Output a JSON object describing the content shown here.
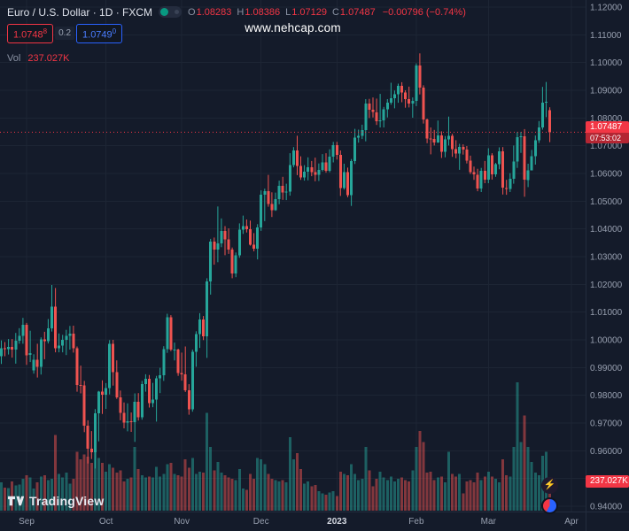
{
  "header": {
    "title": "Euro / U.S. Dollar · 1D · FXCM",
    "ohlc": {
      "open_label": "O",
      "open": "1.08283",
      "high_label": "H",
      "high": "1.08386",
      "low_label": "L",
      "low": "1.07129",
      "close_label": "C",
      "close": "1.07487",
      "change": "−0.00796 (−0.74%)"
    },
    "trade": {
      "sell": "1.0748",
      "sell_sup": "8",
      "spread": "0.2",
      "buy": "1.0749",
      "buy_sup": "0"
    },
    "volume_row": {
      "label": "Vol",
      "value": "237.027K"
    }
  },
  "watermark": "www.nehcap.com",
  "price_axis": {
    "ticks": [
      "1.12000",
      "1.11000",
      "1.10000",
      "1.09000",
      "1.08000",
      "1.07000",
      "1.06000",
      "1.05000",
      "1.04000",
      "1.03000",
      "1.02000",
      "1.01000",
      "1.00000",
      "0.99000",
      "0.98000",
      "0.97000",
      "0.96000",
      "0.95000",
      "0.94000"
    ],
    "last_price_label": "1.07487",
    "countdown": "07:53:02",
    "volume_tag": "237.027K"
  },
  "footer": {
    "brand": "TradingView"
  },
  "icons": {
    "bolt": "⚡"
  },
  "colors": {
    "background": "#141b2a",
    "grid": "#1d2534",
    "axis_text": "#98a0b0",
    "axis_border": "#232c3d",
    "up": "#26a69a",
    "down": "#ef5350",
    "accent_red": "#f23645",
    "accent_blue": "#2962ff",
    "up_volume": "rgba(38,166,154,0.5)",
    "down_volume": "rgba(239,83,80,0.5)"
  },
  "chart_data": {
    "type": "candlestick",
    "symbol": "EUR/USD",
    "interval": "1D",
    "exchange": "FXCM",
    "title": "Euro / U.S. Dollar",
    "ylim": [
      0.94,
      1.12
    ],
    "grid_step": 0.01,
    "last_close": 1.07487,
    "last_change": -0.00796,
    "last_change_pct": -0.74,
    "volume_unit": "K",
    "columns": [
      "open",
      "high",
      "low",
      "close",
      "volume_k"
    ],
    "time_ticks": [
      {
        "label": "Sep",
        "index": 8
      },
      {
        "label": "Oct",
        "index": 30
      },
      {
        "label": "Nov",
        "index": 51
      },
      {
        "label": "Dec",
        "index": 73
      },
      {
        "label": "2023",
        "index": 94,
        "major": true
      },
      {
        "label": "Feb",
        "index": 116
      },
      {
        "label": "Mar",
        "index": 136
      },
      {
        "label": "Apr",
        "index": 159
      }
    ],
    "candles": [
      [
        1.0039,
        1.0045,
        0.9926,
        0.9941,
        210
      ],
      [
        0.9941,
        0.9998,
        0.9913,
        0.997,
        230
      ],
      [
        0.997,
        0.9992,
        0.9941,
        0.9967,
        190
      ],
      [
        0.9967,
        1.0003,
        0.9947,
        0.9975,
        185
      ],
      [
        0.9975,
        1.0003,
        0.9936,
        0.9964,
        240
      ],
      [
        0.9964,
        1.0025,
        0.9914,
        0.9997,
        205
      ],
      [
        0.9997,
        1.0042,
        0.9986,
        1.0014,
        215
      ],
      [
        1.0014,
        1.0079,
        0.9986,
        1.0054,
        260
      ],
      [
        1.0054,
        1.0061,
        0.991,
        0.9945,
        290
      ],
      [
        0.9945,
        1.0033,
        0.992,
        0.9952,
        270
      ],
      [
        0.989,
        0.9948,
        0.9878,
        0.9928,
        180
      ],
      [
        0.9928,
        0.9986,
        0.9864,
        0.9903,
        230
      ],
      [
        0.9903,
        1.0009,
        0.9875,
        1.0002,
        280
      ],
      [
        1.0002,
        1.0029,
        0.993,
        0.9995,
        290
      ],
      [
        0.9995,
        1.0075,
        0.9987,
        1.0041,
        250
      ],
      [
        1.0041,
        1.0198,
        1.003,
        1.012,
        260
      ],
      [
        1.012,
        1.0187,
        0.9955,
        0.997,
        620
      ],
      [
        0.997,
        1.0023,
        0.9955,
        0.9979,
        300
      ],
      [
        0.9979,
        1.0018,
        0.9955,
        1.0,
        270
      ],
      [
        1.0,
        1.0036,
        0.9945,
        1.0015,
        310
      ],
      [
        1.0015,
        1.005,
        0.9965,
        1.0023,
        220
      ],
      [
        1.0023,
        1.0051,
        0.9954,
        0.997,
        260
      ],
      [
        0.997,
        0.9976,
        0.9813,
        0.9838,
        480
      ],
      [
        0.9838,
        0.9907,
        0.9807,
        0.9835,
        420
      ],
      [
        0.9835,
        0.9852,
        0.9667,
        0.969,
        460
      ],
      [
        0.969,
        0.971,
        0.9554,
        0.9607,
        440
      ],
      [
        0.9607,
        0.9671,
        0.957,
        0.9594,
        390
      ],
      [
        0.9594,
        0.975,
        0.9536,
        0.9735,
        520
      ],
      [
        0.9735,
        0.9816,
        0.9634,
        0.9814,
        430
      ],
      [
        0.9814,
        0.9854,
        0.9733,
        0.9802,
        390
      ],
      [
        0.9802,
        0.9844,
        0.9751,
        0.9826,
        320
      ],
      [
        0.9826,
        0.9999,
        0.9803,
        0.9985,
        380
      ],
      [
        0.9985,
        1.0,
        0.9835,
        0.9884,
        350
      ],
      [
        0.9884,
        0.9926,
        0.9787,
        0.9793,
        310
      ],
      [
        0.9793,
        0.9817,
        0.971,
        0.9737,
        330
      ],
      [
        0.9737,
        0.9774,
        0.9681,
        0.9702,
        240
      ],
      [
        0.9702,
        0.9771,
        0.967,
        0.9707,
        260
      ],
      [
        0.9707,
        0.9738,
        0.9668,
        0.9703,
        270
      ],
      [
        0.9703,
        0.9807,
        0.9632,
        0.9776,
        520
      ],
      [
        0.9776,
        0.9808,
        0.9709,
        0.972,
        340
      ],
      [
        0.972,
        0.9852,
        0.9712,
        0.984,
        290
      ],
      [
        0.984,
        0.9876,
        0.9813,
        0.9859,
        270
      ],
      [
        0.9859,
        0.9873,
        0.9756,
        0.9772,
        280
      ],
      [
        0.9772,
        0.9845,
        0.9757,
        0.9785,
        270
      ],
      [
        0.9785,
        0.987,
        0.9705,
        0.9861,
        360
      ],
      [
        0.9861,
        0.9899,
        0.9808,
        0.9873,
        280
      ],
      [
        0.9873,
        0.9977,
        0.9852,
        0.9967,
        300
      ],
      [
        0.9967,
        1.0094,
        0.9953,
        1.0082,
        380
      ],
      [
        1.0082,
        1.0089,
        0.9959,
        0.9965,
        390
      ],
      [
        0.9965,
        0.999,
        0.9926,
        0.9965,
        300
      ],
      [
        0.9965,
        0.9968,
        0.987,
        0.9881,
        290
      ],
      [
        0.9881,
        0.9954,
        0.9853,
        0.9876,
        280
      ],
      [
        0.9876,
        0.9976,
        0.9812,
        0.9818,
        420
      ],
      [
        0.9818,
        0.984,
        0.973,
        0.975,
        350
      ],
      [
        0.975,
        0.9965,
        0.9741,
        0.9957,
        430
      ],
      [
        0.9957,
        1.0031,
        0.9903,
        1.002,
        300
      ],
      [
        1.002,
        1.0096,
        0.9971,
        1.0074,
        320
      ],
      [
        1.0074,
        1.0086,
        0.9999,
        1.0012,
        310
      ],
      [
        1.0012,
        1.0222,
        0.9935,
        1.021,
        800
      ],
      [
        1.021,
        1.0364,
        1.0163,
        1.0354,
        520
      ],
      [
        1.0354,
        1.0369,
        1.0271,
        1.0326,
        330
      ],
      [
        1.0326,
        1.0481,
        1.028,
        1.0348,
        400
      ],
      [
        1.0348,
        1.0438,
        1.0334,
        1.0393,
        310
      ],
      [
        1.0393,
        1.041,
        1.0305,
        1.0363,
        290
      ],
      [
        1.0363,
        1.0402,
        1.031,
        1.0325,
        270
      ],
      [
        1.0325,
        1.0333,
        1.0222,
        1.0239,
        260
      ],
      [
        1.0239,
        1.0315,
        1.0226,
        1.0305,
        250
      ],
      [
        1.0305,
        1.042,
        1.0296,
        1.0398,
        340
      ],
      [
        1.0398,
        1.0448,
        1.0382,
        1.041,
        180
      ],
      [
        1.041,
        1.0434,
        1.0387,
        1.0399,
        170
      ],
      [
        1.0399,
        1.043,
        1.034,
        1.0343,
        300
      ],
      [
        1.0343,
        1.0385,
        1.0319,
        1.0328,
        260
      ],
      [
        1.0328,
        1.0417,
        1.029,
        1.0406,
        430
      ],
      [
        1.0406,
        1.0539,
        1.0393,
        1.0524,
        420
      ],
      [
        1.0524,
        1.0545,
        1.0428,
        1.0536,
        380
      ],
      [
        1.0536,
        1.0595,
        1.048,
        1.049,
        300
      ],
      [
        1.049,
        1.0532,
        1.0443,
        1.0468,
        260
      ],
      [
        1.0468,
        1.0531,
        1.0465,
        1.0507,
        250
      ],
      [
        1.0507,
        1.0574,
        1.0489,
        1.0556,
        240
      ],
      [
        1.0556,
        1.0588,
        1.0505,
        1.0531,
        250
      ],
      [
        1.0531,
        1.0563,
        1.0504,
        1.0535,
        230
      ],
      [
        1.0535,
        1.0673,
        1.052,
        1.0631,
        600
      ],
      [
        1.0631,
        1.0695,
        1.0622,
        1.0683,
        420
      ],
      [
        1.0683,
        1.0736,
        1.0594,
        1.0627,
        470
      ],
      [
        1.0627,
        1.0662,
        1.0577,
        1.0585,
        340
      ],
      [
        1.0585,
        1.063,
        1.0574,
        1.0607,
        220
      ],
      [
        1.0607,
        1.0658,
        1.0575,
        1.0622,
        240
      ],
      [
        1.0622,
        1.0645,
        1.059,
        1.0604,
        200
      ],
      [
        1.0604,
        1.0657,
        1.0572,
        1.0595,
        210
      ],
      [
        1.0595,
        1.0636,
        1.0573,
        1.0613,
        160
      ],
      [
        1.0613,
        1.067,
        1.0607,
        1.064,
        140
      ],
      [
        1.064,
        1.0673,
        1.0603,
        1.061,
        130
      ],
      [
        1.061,
        1.0687,
        1.0604,
        1.0661,
        150
      ],
      [
        1.0661,
        1.0714,
        1.064,
        1.0702,
        160
      ],
      [
        1.0702,
        1.0714,
        1.065,
        1.0667,
        120
      ],
      [
        1.0667,
        1.0683,
        1.0519,
        1.0548,
        320
      ],
      [
        1.0548,
        1.0635,
        1.0542,
        1.0605,
        300
      ],
      [
        1.0605,
        1.0621,
        1.0514,
        1.0522,
        290
      ],
      [
        1.0522,
        1.0652,
        1.0483,
        1.0645,
        380
      ],
      [
        1.0645,
        1.0761,
        1.0634,
        1.073,
        300
      ],
      [
        1.073,
        1.0758,
        1.0711,
        1.0735,
        250
      ],
      [
        1.0735,
        1.0776,
        1.0724,
        1.0756,
        260
      ],
      [
        1.0756,
        1.0868,
        1.0716,
        1.0852,
        520
      ],
      [
        1.0852,
        1.0869,
        1.08,
        1.083,
        330
      ],
      [
        1.083,
        1.0874,
        1.0802,
        1.0821,
        200
      ],
      [
        1.0821,
        1.087,
        1.0775,
        1.0789,
        260
      ],
      [
        1.0789,
        1.0887,
        1.0766,
        1.0792,
        320
      ],
      [
        1.0792,
        1.084,
        1.0766,
        1.0832,
        270
      ],
      [
        1.0832,
        1.0868,
        1.0802,
        1.0856,
        250
      ],
      [
        1.0856,
        1.0927,
        1.0848,
        1.0871,
        280
      ],
      [
        1.0871,
        1.0899,
        1.0835,
        1.0886,
        240
      ],
      [
        1.0886,
        1.0924,
        1.0855,
        1.0916,
        260
      ],
      [
        1.0916,
        1.0929,
        1.0857,
        1.0892,
        270
      ],
      [
        1.0892,
        1.09,
        1.0837,
        1.0868,
        250
      ],
      [
        1.0868,
        1.0913,
        1.0838,
        1.0852,
        240
      ],
      [
        1.0852,
        1.0874,
        1.0801,
        1.0862,
        330
      ],
      [
        1.0862,
        1.0997,
        1.0843,
        1.0989,
        520
      ],
      [
        1.0989,
        1.1033,
        1.0885,
        1.091,
        650
      ],
      [
        1.091,
        1.0918,
        1.078,
        1.0795,
        560
      ],
      [
        1.0795,
        1.0798,
        1.0709,
        1.0726,
        310
      ],
      [
        1.0726,
        1.0766,
        1.0669,
        1.0725,
        320
      ],
      [
        1.0725,
        1.0757,
        1.0701,
        1.0712,
        250
      ],
      [
        1.0712,
        1.0791,
        1.071,
        1.0737,
        270
      ],
      [
        1.0737,
        1.0752,
        1.0656,
        1.0678,
        280
      ],
      [
        1.0678,
        1.0735,
        1.0658,
        1.0723,
        230
      ],
      [
        1.0723,
        1.0805,
        1.0701,
        1.0736,
        480
      ],
      [
        1.0736,
        1.0743,
        1.066,
        1.0688,
        300
      ],
      [
        1.0688,
        1.072,
        1.0655,
        1.0672,
        280
      ],
      [
        1.0672,
        1.0707,
        1.0613,
        1.0695,
        300
      ],
      [
        1.0695,
        1.0705,
        1.0668,
        1.0686,
        140
      ],
      [
        1.0686,
        1.0699,
        1.0636,
        1.0647,
        240
      ],
      [
        1.0647,
        1.0664,
        1.0598,
        1.0605,
        250
      ],
      [
        1.0605,
        1.0625,
        1.0577,
        1.0596,
        230
      ],
      [
        1.0596,
        1.0617,
        1.0536,
        1.0546,
        310
      ],
      [
        1.0546,
        1.062,
        1.0533,
        1.0609,
        250
      ],
      [
        1.0609,
        1.0645,
        1.0565,
        1.0577,
        280
      ],
      [
        1.0577,
        1.0691,
        1.0565,
        1.0666,
        320
      ],
      [
        1.0666,
        1.0673,
        1.0578,
        1.0597,
        280
      ],
      [
        1.0597,
        1.0638,
        1.0588,
        1.0634,
        260
      ],
      [
        1.0634,
        1.0694,
        1.0615,
        1.0679,
        230
      ],
      [
        1.0679,
        1.0695,
        1.0524,
        1.0548,
        420
      ],
      [
        1.0548,
        1.0577,
        1.0523,
        1.0545,
        290
      ],
      [
        1.0545,
        1.0601,
        1.0533,
        1.0581,
        280
      ],
      [
        1.0581,
        1.0701,
        1.0563,
        1.0643,
        520
      ],
      [
        1.0643,
        1.0749,
        1.062,
        1.0731,
        1050
      ],
      [
        1.0731,
        1.075,
        1.0674,
        1.0734,
        560
      ],
      [
        1.0734,
        1.076,
        1.0516,
        1.0577,
        780
      ],
      [
        1.0577,
        1.0635,
        1.0551,
        1.0611,
        520
      ],
      [
        1.0611,
        1.0685,
        1.0611,
        1.0663,
        400
      ],
      [
        1.0663,
        1.0737,
        1.0632,
        1.072,
        310
      ],
      [
        1.072,
        1.0789,
        1.071,
        1.0766,
        290
      ],
      [
        1.0766,
        1.0912,
        1.0758,
        1.0856,
        450
      ],
      [
        1.0856,
        1.093,
        1.0803,
        1.0858,
        480
      ],
      [
        1.08283,
        1.08386,
        1.07129,
        1.07487,
        237.027
      ]
    ]
  }
}
